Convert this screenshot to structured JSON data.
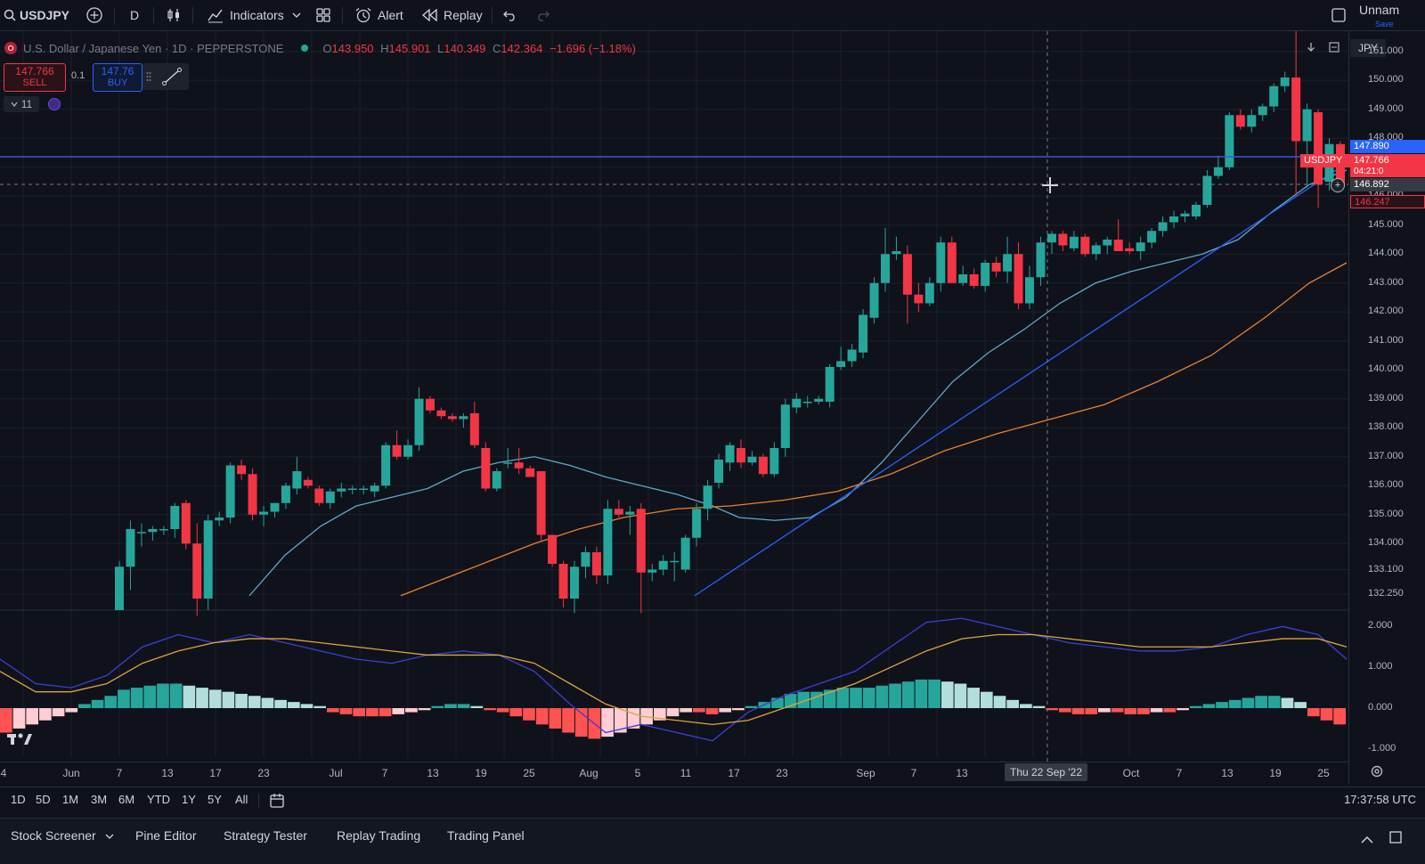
{
  "toolbar": {
    "symbol": "USDJPY",
    "interval": "D",
    "indicators_label": "Indicators",
    "alert_label": "Alert",
    "replay_label": "Replay",
    "layout_name": "Unnam",
    "save_label": "Save"
  },
  "legend": {
    "title": "U.S. Dollar / Japanese Yen · 1D · PEPPERSTONE",
    "open_label": "O",
    "open": "143.950",
    "high_label": "H",
    "high": "145.901",
    "low_label": "L",
    "low": "140.349",
    "close_label": "C",
    "close": "142.364",
    "change": "−1.696 (−1.18%)"
  },
  "trade": {
    "sell_price": "147.766",
    "sell_label": "SELL",
    "buy_price": "147.76",
    "buy_label": "BUY",
    "quantity": "0.1"
  },
  "indicators_collapse": {
    "count": "11"
  },
  "price_axis": {
    "currency": "JPY",
    "labels": [
      "151.000",
      "150.000",
      "149.000",
      "148.000",
      "147.000",
      "146.000",
      "145.000",
      "144.000",
      "143.000",
      "142.000",
      "141.000",
      "140.000",
      "139.000",
      "138.000",
      "137.000",
      "136.000",
      "135.000",
      "134.000",
      "133.100",
      "132.250"
    ],
    "tags": {
      "blue": "147.890",
      "symbol_tag": "USDJPY",
      "last": "147.766",
      "countdown": "04:21:0",
      "crosshair": "146.892",
      "red": "146.247"
    }
  },
  "macd_axis": {
    "labels": [
      "2.000",
      "1.000",
      "0.000",
      "-1.000"
    ]
  },
  "time_axis": {
    "labels": [
      "4",
      "Jun",
      "7",
      "13",
      "17",
      "23",
      "Jul",
      "7",
      "13",
      "19",
      "25",
      "Aug",
      "5",
      "11",
      "17",
      "23",
      "Sep",
      "7",
      "13",
      "Oct",
      "7",
      "13",
      "19",
      "25"
    ],
    "crosshair_date": "Thu 22 Sep '22"
  },
  "range_bar": {
    "buttons": [
      "1D",
      "5D",
      "1M",
      "3M",
      "6M",
      "YTD",
      "1Y",
      "5Y",
      "All"
    ],
    "clock": "17:37:58 UTC"
  },
  "bottom_tabs": [
    "Stock Screener",
    "Pine Editor",
    "Strategy Tester",
    "Replay Trading",
    "Trading Panel"
  ],
  "colors": {
    "up": "#26a69a",
    "down": "#f23645",
    "ma_fast": "#5fa8c9",
    "ma_slow": "#e9812f",
    "trendline": "#2962ff",
    "hline": "#3d56d6",
    "macd": "#3d3fd6",
    "signal": "#e0a43b"
  },
  "chart_data": {
    "type": "candlestick",
    "symbol": "USDJPY",
    "interval": "1D",
    "ylim": [
      131.7,
      151.7
    ],
    "candles": [
      [
        131.7,
        133.4,
        131.7,
        133.2
      ],
      [
        133.2,
        134.8,
        132.4,
        134.5
      ],
      [
        134.4,
        134.7,
        133.9,
        134.4
      ],
      [
        134.4,
        134.6,
        134.1,
        134.5
      ],
      [
        134.5,
        134.6,
        134.3,
        134.5
      ],
      [
        134.5,
        135.4,
        134.2,
        135.3
      ],
      [
        135.4,
        135.5,
        133.8,
        134.0
      ],
      [
        134.0,
        134.7,
        131.5,
        132.1
      ],
      [
        132.1,
        135.0,
        131.7,
        134.8
      ],
      [
        134.8,
        135.1,
        134.6,
        134.9
      ],
      [
        134.9,
        136.8,
        134.7,
        136.7
      ],
      [
        136.7,
        136.9,
        136.2,
        136.4
      ],
      [
        136.4,
        136.6,
        134.8,
        135.0
      ],
      [
        135.0,
        135.3,
        134.6,
        135.1
      ],
      [
        135.1,
        135.4,
        134.9,
        135.4
      ],
      [
        135.4,
        136.1,
        135.2,
        136.0
      ],
      [
        135.9,
        137.0,
        135.7,
        136.5
      ],
      [
        136.2,
        136.3,
        135.9,
        136.0
      ],
      [
        135.9,
        136.0,
        135.3,
        135.4
      ],
      [
        135.4,
        135.9,
        135.2,
        135.8
      ],
      [
        135.8,
        136.1,
        135.6,
        135.9
      ],
      [
        135.9,
        136.0,
        135.7,
        135.9
      ],
      [
        135.9,
        136.0,
        135.7,
        135.9
      ],
      [
        135.8,
        136.1,
        135.6,
        136.0
      ],
      [
        136.0,
        137.5,
        135.9,
        137.4
      ],
      [
        137.4,
        137.9,
        136.9,
        137.0
      ],
      [
        137.0,
        137.6,
        136.9,
        137.4
      ],
      [
        137.4,
        139.4,
        137.2,
        139.0
      ],
      [
        139.0,
        139.1,
        138.5,
        138.6
      ],
      [
        138.6,
        138.7,
        138.3,
        138.4
      ],
      [
        138.4,
        138.5,
        138.2,
        138.3
      ],
      [
        138.3,
        138.5,
        138.0,
        138.4
      ],
      [
        138.5,
        138.9,
        137.3,
        137.4
      ],
      [
        137.3,
        137.5,
        135.8,
        135.9
      ],
      [
        135.9,
        136.6,
        135.8,
        136.5
      ],
      [
        136.8,
        137.3,
        136.6,
        136.8
      ],
      [
        136.8,
        137.3,
        136.4,
        136.6
      ],
      [
        136.6,
        136.7,
        136.3,
        136.3
      ],
      [
        136.5,
        136.5,
        134.1,
        134.3
      ],
      [
        134.3,
        134.3,
        133.2,
        133.3
      ],
      [
        133.3,
        133.4,
        131.8,
        132.1
      ],
      [
        132.1,
        133.4,
        131.6,
        133.2
      ],
      [
        133.2,
        133.9,
        132.8,
        133.7
      ],
      [
        133.7,
        133.9,
        132.6,
        132.9
      ],
      [
        132.9,
        135.5,
        132.6,
        135.2
      ],
      [
        135.2,
        135.5,
        134.9,
        135.0
      ],
      [
        135.0,
        135.3,
        134.3,
        135.1
      ],
      [
        135.2,
        135.4,
        131.6,
        133.0
      ],
      [
        133.0,
        133.3,
        132.7,
        133.1
      ],
      [
        133.1,
        133.6,
        132.9,
        133.4
      ],
      [
        133.4,
        133.7,
        132.7,
        133.4
      ],
      [
        133.1,
        134.3,
        133.0,
        134.2
      ],
      [
        134.2,
        135.4,
        133.9,
        135.2
      ],
      [
        135.2,
        136.2,
        134.8,
        136.0
      ],
      [
        136.1,
        137.1,
        135.9,
        136.9
      ],
      [
        136.8,
        137.5,
        136.5,
        137.4
      ],
      [
        137.3,
        137.6,
        136.6,
        136.8
      ],
      [
        136.8,
        137.2,
        136.7,
        137.0
      ],
      [
        137.0,
        137.1,
        136.3,
        136.4
      ],
      [
        136.4,
        137.5,
        136.3,
        137.3
      ],
      [
        137.3,
        139.0,
        137.0,
        138.8
      ],
      [
        138.7,
        139.2,
        138.5,
        139.0
      ],
      [
        138.9,
        139.1,
        138.7,
        138.9
      ],
      [
        138.9,
        139.1,
        138.8,
        139.0
      ],
      [
        138.9,
        140.2,
        138.7,
        140.1
      ],
      [
        140.1,
        140.8,
        140.0,
        140.3
      ],
      [
        140.3,
        140.9,
        140.1,
        140.7
      ],
      [
        140.6,
        142.1,
        140.4,
        141.9
      ],
      [
        141.8,
        143.2,
        141.6,
        143.0
      ],
      [
        143.0,
        144.9,
        142.7,
        144.0
      ],
      [
        144.0,
        144.6,
        143.8,
        144.1
      ],
      [
        144.0,
        144.3,
        141.6,
        142.6
      ],
      [
        142.6,
        143.0,
        142.0,
        142.3
      ],
      [
        142.3,
        143.2,
        142.2,
        143.0
      ],
      [
        143.0,
        144.6,
        142.7,
        144.4
      ],
      [
        144.4,
        144.6,
        143.0,
        143.0
      ],
      [
        143.0,
        143.6,
        142.9,
        143.3
      ],
      [
        143.3,
        143.5,
        142.8,
        142.9
      ],
      [
        142.9,
        143.8,
        142.7,
        143.7
      ],
      [
        143.7,
        143.9,
        143.2,
        143.4
      ],
      [
        143.4,
        144.6,
        143.0,
        144.0
      ],
      [
        144.0,
        144.4,
        142.1,
        142.3
      ],
      [
        142.3,
        143.6,
        142.1,
        143.2
      ],
      [
        143.2,
        144.6,
        142.9,
        144.4
      ],
      [
        144.4,
        144.8,
        144.0,
        144.7
      ],
      [
        144.7,
        144.8,
        144.1,
        144.3
      ],
      [
        144.2,
        144.8,
        144.1,
        144.6
      ],
      [
        144.6,
        144.7,
        143.9,
        144.0
      ],
      [
        144.0,
        144.4,
        143.8,
        144.3
      ],
      [
        144.3,
        144.6,
        144.0,
        144.5
      ],
      [
        144.5,
        145.2,
        144.2,
        144.1
      ],
      [
        144.2,
        144.4,
        144.0,
        144.1
      ],
      [
        144.1,
        144.6,
        143.8,
        144.4
      ],
      [
        144.4,
        144.9,
        144.2,
        144.8
      ],
      [
        144.8,
        145.3,
        144.6,
        145.1
      ],
      [
        145.1,
        145.5,
        144.9,
        145.3
      ],
      [
        145.3,
        145.5,
        145.1,
        145.4
      ],
      [
        145.3,
        145.8,
        145.2,
        145.7
      ],
      [
        145.7,
        146.9,
        145.6,
        146.7
      ],
      [
        146.7,
        147.4,
        146.6,
        147.0
      ],
      [
        147.0,
        148.9,
        146.9,
        148.8
      ],
      [
        148.8,
        149.0,
        148.3,
        148.4
      ],
      [
        148.4,
        149.0,
        148.2,
        148.8
      ],
      [
        148.8,
        149.2,
        148.6,
        149.1
      ],
      [
        149.1,
        149.9,
        148.9,
        149.8
      ],
      [
        149.8,
        150.3,
        149.6,
        150.1
      ],
      [
        150.1,
        151.8,
        146.0,
        147.9
      ],
      [
        147.9,
        149.2,
        146.3,
        149.0
      ],
      [
        148.9,
        149.0,
        145.6,
        146.4
      ],
      [
        146.5,
        148.0,
        146.2,
        147.8
      ],
      [
        147.8,
        147.9,
        146.3,
        146.4
      ]
    ],
    "moving_averages": [
      {
        "color": "#5fa8c9",
        "points": [
          [
            280,
            132.2
          ],
          [
            320,
            133.6
          ],
          [
            360,
            134.6
          ],
          [
            400,
            135.3
          ],
          [
            440,
            135.6
          ],
          [
            480,
            135.9
          ],
          [
            520,
            136.5
          ],
          [
            560,
            136.8
          ],
          [
            600,
            137.0
          ],
          [
            640,
            136.7
          ],
          [
            680,
            136.3
          ],
          [
            720,
            136.0
          ],
          [
            760,
            135.7
          ],
          [
            800,
            135.3
          ],
          [
            830,
            134.9
          ],
          [
            870,
            134.8
          ],
          [
            910,
            134.9
          ],
          [
            950,
            135.6
          ],
          [
            990,
            136.8
          ],
          [
            1030,
            138.2
          ],
          [
            1070,
            139.6
          ],
          [
            1110,
            140.6
          ],
          [
            1150,
            141.4
          ],
          [
            1190,
            142.3
          ],
          [
            1230,
            143.0
          ],
          [
            1270,
            143.4
          ],
          [
            1310,
            143.7
          ],
          [
            1350,
            144.0
          ],
          [
            1390,
            144.5
          ],
          [
            1430,
            145.5
          ],
          [
            1470,
            146.4
          ],
          [
            1512,
            146.9
          ]
        ]
      },
      {
        "color": "#e9812f",
        "points": [
          [
            450,
            132.2
          ],
          [
            500,
            132.8
          ],
          [
            550,
            133.4
          ],
          [
            600,
            134.0
          ],
          [
            650,
            134.5
          ],
          [
            700,
            134.9
          ],
          [
            760,
            135.2
          ],
          [
            820,
            135.3
          ],
          [
            880,
            135.5
          ],
          [
            940,
            135.8
          ],
          [
            1000,
            136.4
          ],
          [
            1060,
            137.2
          ],
          [
            1120,
            137.8
          ],
          [
            1180,
            138.3
          ],
          [
            1240,
            138.8
          ],
          [
            1300,
            139.6
          ],
          [
            1360,
            140.5
          ],
          [
            1420,
            141.8
          ],
          [
            1470,
            143.0
          ],
          [
            1512,
            143.7
          ]
        ]
      }
    ],
    "trendline": [
      [
        780,
        132.2
      ],
      [
        1500,
        146.9
      ]
    ],
    "horizontal_line": 147.89,
    "macd_panel": {
      "ylim": [
        -1.2,
        2.4
      ],
      "macd": [
        [
          0,
          1.2
        ],
        [
          40,
          0.6
        ],
        [
          80,
          0.5
        ],
        [
          120,
          0.8
        ],
        [
          160,
          1.5
        ],
        [
          200,
          1.8
        ],
        [
          240,
          1.6
        ],
        [
          280,
          1.8
        ],
        [
          320,
          1.6
        ],
        [
          360,
          1.4
        ],
        [
          400,
          1.2
        ],
        [
          440,
          1.1
        ],
        [
          480,
          1.3
        ],
        [
          520,
          1.4
        ],
        [
          560,
          1.3
        ],
        [
          600,
          0.9
        ],
        [
          640,
          0.1
        ],
        [
          680,
          -0.6
        ],
        [
          720,
          -0.4
        ],
        [
          760,
          -0.6
        ],
        [
          800,
          -0.8
        ],
        [
          840,
          -0.1
        ],
        [
          880,
          0.3
        ],
        [
          920,
          0.6
        ],
        [
          960,
          0.9
        ],
        [
          1000,
          1.5
        ],
        [
          1040,
          2.1
        ],
        [
          1080,
          2.2
        ],
        [
          1120,
          2.0
        ],
        [
          1160,
          1.8
        ],
        [
          1200,
          1.6
        ],
        [
          1240,
          1.5
        ],
        [
          1280,
          1.4
        ],
        [
          1320,
          1.4
        ],
        [
          1360,
          1.5
        ],
        [
          1400,
          1.8
        ],
        [
          1440,
          2.0
        ],
        [
          1480,
          1.8
        ],
        [
          1512,
          1.2
        ]
      ],
      "signal": [
        [
          0,
          0.9
        ],
        [
          40,
          0.4
        ],
        [
          80,
          0.4
        ],
        [
          120,
          0.6
        ],
        [
          160,
          1.1
        ],
        [
          200,
          1.4
        ],
        [
          240,
          1.6
        ],
        [
          280,
          1.7
        ],
        [
          320,
          1.7
        ],
        [
          360,
          1.6
        ],
        [
          400,
          1.5
        ],
        [
          440,
          1.4
        ],
        [
          480,
          1.3
        ],
        [
          520,
          1.3
        ],
        [
          560,
          1.3
        ],
        [
          600,
          1.1
        ],
        [
          640,
          0.6
        ],
        [
          680,
          0.1
        ],
        [
          720,
          -0.2
        ],
        [
          760,
          -0.3
        ],
        [
          800,
          -0.4
        ],
        [
          840,
          -0.3
        ],
        [
          880,
          0.0
        ],
        [
          920,
          0.3
        ],
        [
          960,
          0.6
        ],
        [
          1000,
          1.0
        ],
        [
          1040,
          1.4
        ],
        [
          1080,
          1.7
        ],
        [
          1120,
          1.8
        ],
        [
          1160,
          1.8
        ],
        [
          1200,
          1.7
        ],
        [
          1240,
          1.6
        ],
        [
          1280,
          1.5
        ],
        [
          1320,
          1.5
        ],
        [
          1360,
          1.5
        ],
        [
          1400,
          1.6
        ],
        [
          1440,
          1.7
        ],
        [
          1480,
          1.7
        ],
        [
          1512,
          1.5
        ]
      ],
      "histogram": [
        -0.6,
        -0.5,
        -0.4,
        -0.3,
        -0.2,
        -0.1,
        0.1,
        0.2,
        0.3,
        0.45,
        0.5,
        0.55,
        0.6,
        0.6,
        0.55,
        0.5,
        0.45,
        0.4,
        0.35,
        0.3,
        0.25,
        0.2,
        0.15,
        0.1,
        0.05,
        -0.1,
        -0.15,
        -0.2,
        -0.2,
        -0.2,
        -0.15,
        -0.1,
        -0.05,
        0.05,
        0.1,
        0.1,
        0.05,
        -0.05,
        -0.1,
        -0.2,
        -0.3,
        -0.4,
        -0.5,
        -0.6,
        -0.7,
        -0.75,
        -0.7,
        -0.6,
        -0.5,
        -0.4,
        -0.3,
        -0.2,
        -0.1,
        -0.1,
        -0.15,
        -0.1,
        -0.05,
        0.05,
        0.15,
        0.25,
        0.35,
        0.4,
        0.4,
        0.45,
        0.5,
        0.5,
        0.5,
        0.55,
        0.6,
        0.65,
        0.7,
        0.7,
        0.65,
        0.6,
        0.5,
        0.4,
        0.3,
        0.2,
        0.1,
        0.05,
        -0.05,
        -0.1,
        -0.15,
        -0.15,
        -0.1,
        -0.1,
        -0.15,
        -0.15,
        -0.1,
        -0.1,
        -0.05,
        0.05,
        0.1,
        0.15,
        0.2,
        0.25,
        0.3,
        0.3,
        0.25,
        0.15,
        -0.2,
        -0.3,
        -0.4
      ]
    }
  }
}
